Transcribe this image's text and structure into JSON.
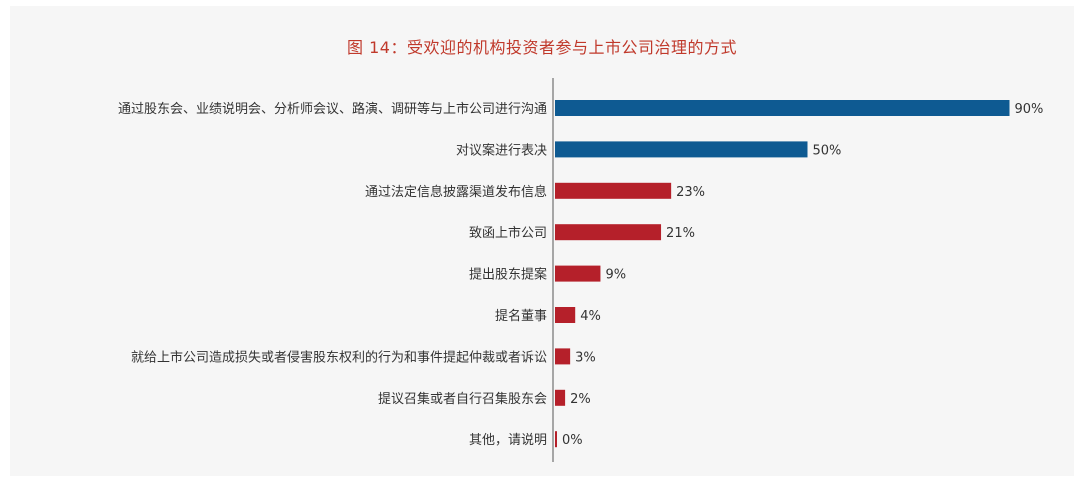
{
  "title": "图 14：受欢迎的机构投资者参与上市公司治理的方式",
  "colors": {
    "highlight": "#0e5a92",
    "normal": "#b5202a",
    "title": "#c0392b"
  },
  "chart_data": {
    "type": "bar",
    "orientation": "horizontal",
    "title": "图 14：受欢迎的机构投资者参与上市公司治理的方式",
    "categories": [
      "通过股东会、业绩说明会、分析师会议、路演、调研等与上市公司进行沟通",
      "对议案进行表决",
      "通过法定信息披露渠道发布信息",
      "致函上市公司",
      "提出股东提案",
      "提名董事",
      "就给上市公司造成损失或者侵害股东权利的行为和事件提起仲裁或者诉讼",
      "提议召集或者自行召集股东会",
      "其他，请说明"
    ],
    "values": [
      90,
      50,
      23,
      21,
      9,
      4,
      3,
      2,
      0
    ],
    "value_labels": [
      "90%",
      "50%",
      "23%",
      "21%",
      "9%",
      "4%",
      "3%",
      "2%",
      "0%"
    ],
    "highlighted": [
      true,
      true,
      false,
      false,
      false,
      false,
      false,
      false,
      false
    ],
    "xlim": [
      0,
      100
    ],
    "grid": false
  }
}
